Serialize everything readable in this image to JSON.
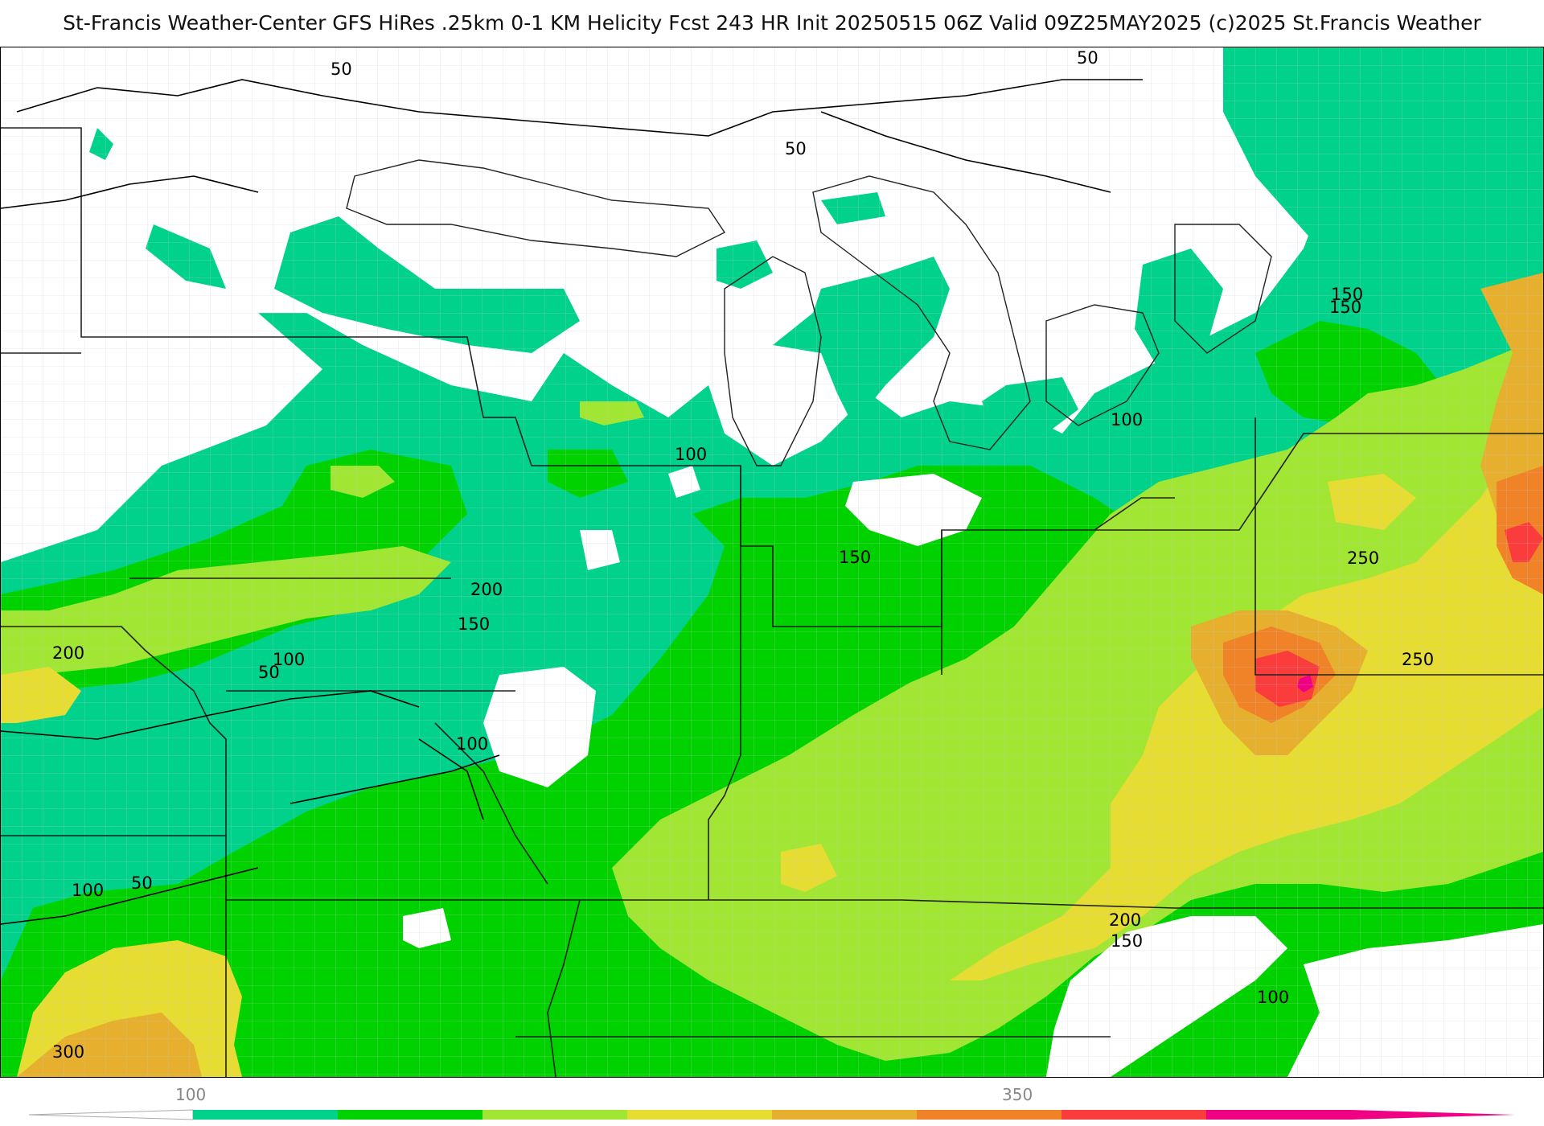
{
  "title": "St-Francis Weather-Center GFS HiRes .25km 0-1 KM Helicity Fcst 243 HR Init 20250515 06Z  Valid 09Z25MAY2025    (c)2025 St.Francis Weather",
  "legend": {
    "ticks": [
      "100",
      "350"
    ],
    "colors": [
      "#00d28c",
      "#00d200",
      "#a0e632",
      "#e6dc32",
      "#e6af2d",
      "#f08228",
      "#fa3c3c",
      "#f00082"
    ]
  },
  "contour_labels": [
    "50",
    "50",
    "50",
    "100",
    "150",
    "200",
    "150",
    "100",
    "50",
    "200",
    "100",
    "100",
    "50",
    "300",
    "150",
    "250",
    "250",
    "200",
    "150",
    "100",
    "150",
    "100"
  ]
}
